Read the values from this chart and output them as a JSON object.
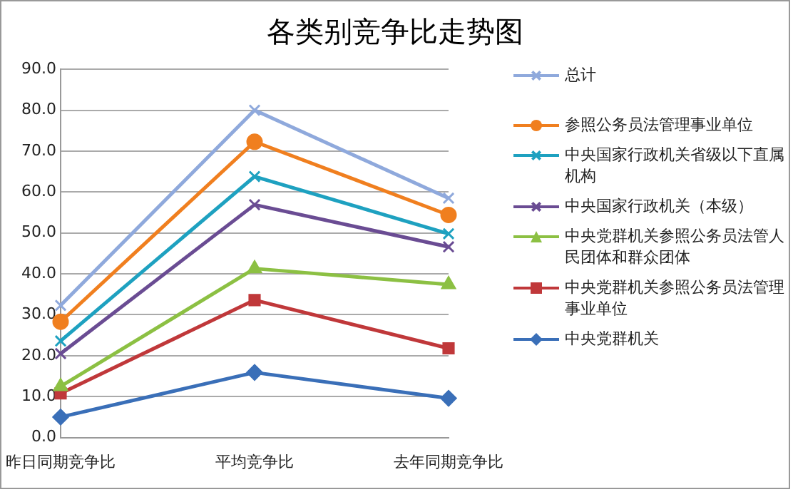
{
  "chart_data": {
    "type": "line",
    "title": "各类别竞争比走势图",
    "categories": [
      "昨日同期竞争比",
      "平均竞争比",
      "去年同期竞争比"
    ],
    "ylim": [
      0,
      90
    ],
    "yticks": [
      {
        "value": 0,
        "label": "0.0"
      },
      {
        "value": 10,
        "label": "10.0"
      },
      {
        "value": 20,
        "label": "20.0"
      },
      {
        "value": 30,
        "label": "30.0"
      },
      {
        "value": 40,
        "label": "40.0"
      },
      {
        "value": 50,
        "label": "50.0"
      },
      {
        "value": 60,
        "label": "60.0"
      },
      {
        "value": 70,
        "label": "70.0"
      },
      {
        "value": 80,
        "label": "80.0"
      },
      {
        "value": 90,
        "label": "90.0"
      }
    ],
    "grid": "y",
    "legend": "right",
    "line_style": "solid",
    "series": [
      {
        "name": "总计",
        "color": "#8fa9dc",
        "marker": "cross",
        "values": [
          32.3,
          80,
          58.5
        ]
      },
      {
        "name": "参照公务员法管理事业单位",
        "color": "#f07f1f",
        "marker": "circle",
        "values": [
          28.3,
          72.3,
          54.4
        ]
      },
      {
        "name": "中央国家行政机关省级以下直属机构",
        "color": "#1ea1c0",
        "marker": "cross",
        "values": [
          23.6,
          63.8,
          49.8
        ]
      },
      {
        "name": "中央国家行政机关（本级）",
        "color": "#6a4c93",
        "marker": "cross",
        "values": [
          20.5,
          56.9,
          46.6
        ]
      },
      {
        "name": "中央党群机关参照公务员法管人民团体和群众团体",
        "color": "#8cc043",
        "marker": "triangle",
        "values": [
          12.5,
          41.3,
          37.4
        ]
      },
      {
        "name": "中央党群机关参照公务员法管理事业单位",
        "color": "#c0383a",
        "marker": "square",
        "values": [
          10.8,
          33.6,
          21.8
        ]
      },
      {
        "name": "中央党群机关",
        "color": "#3a6fb8",
        "marker": "diamond",
        "values": [
          5,
          15.9,
          9.6
        ]
      }
    ]
  }
}
